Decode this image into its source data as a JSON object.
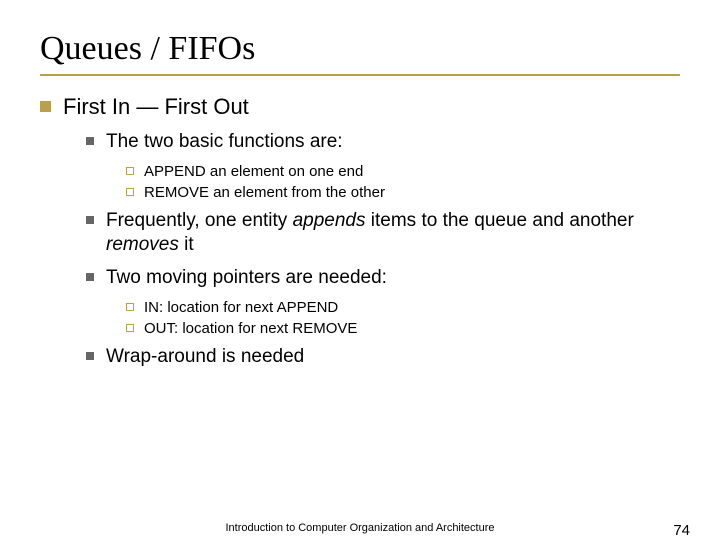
{
  "title": "Queues / FIFOs",
  "lvl1": {
    "text": "First In — First Out"
  },
  "lvl2": {
    "item0": "The two basic functions are:",
    "item1_pre": "Frequently, one entity ",
    "item1_append": "appends",
    "item1_mid": " items to the queue and another ",
    "item1_remove": "removes",
    "item1_post": " it",
    "item2": "Two moving pointers are needed:",
    "item3": "Wrap-around is needed"
  },
  "lvl3a": {
    "i0": "APPEND an element on one end",
    "i1": "REMOVE an element from the other"
  },
  "lvl3b": {
    "i0": "IN: location for next APPEND",
    "i1": "OUT: location for next REMOVE"
  },
  "footer": {
    "text": "Introduction to Computer Organization and Architecture",
    "page": "74"
  },
  "colors": {
    "accent": "#b8a050",
    "square2": "#666666"
  }
}
